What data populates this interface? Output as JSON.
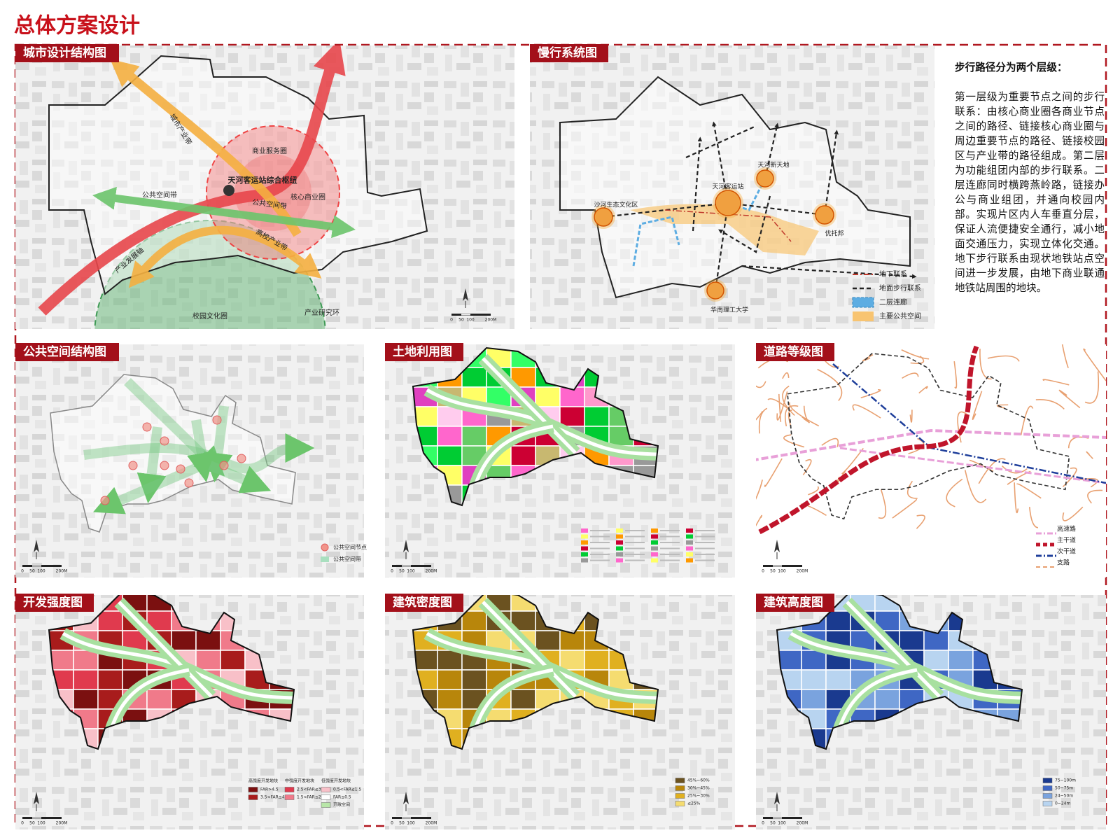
{
  "header": {
    "title": "总体方案设计"
  },
  "panels": [
    {
      "title": "城市设计结构图",
      "labels": [
        "天河客运站综合枢纽",
        "商业服务圈",
        "核心商业圈",
        "公共空间带",
        "公共空间带",
        "城市产业带",
        "高校产业带",
        "产业发展轴",
        "校园文化圈",
        "产业研究环"
      ],
      "scale": [
        "0",
        "50",
        "100",
        "200M"
      ]
    },
    {
      "title": "慢行系统图",
      "labels": [
        "沙河生态文化区",
        "天河客运站",
        "天河新天地",
        "优托邦",
        "华南理工大学"
      ],
      "legend": [
        {
          "label": "地下联系",
          "color": "#c0392b"
        },
        {
          "label": "地面步行联系",
          "color": "#222222"
        },
        {
          "label": "二层连廊",
          "color": "#5dade2"
        },
        {
          "label": "主要公共空间",
          "color": "#f8c471"
        }
      ]
    },
    {
      "title": "公共空间结构图",
      "legend": [
        {
          "label": "公共空间节点",
          "color": "#f1948a"
        },
        {
          "label": "公共空间带",
          "color": "#a9dfbf"
        }
      ],
      "scale": [
        "0",
        "50",
        "100",
        "200M"
      ]
    },
    {
      "title": "土地利用图",
      "scale": [
        "0",
        "50",
        "100",
        "200M"
      ]
    },
    {
      "title": "道路等级图",
      "legend": [
        {
          "label": "高速路",
          "color": "#e8a0d8"
        },
        {
          "label": "主干道",
          "color": "#c0152b"
        },
        {
          "label": "次干道",
          "color": "#1f3f9b"
        },
        {
          "label": "支路",
          "color": "#e8a070"
        }
      ],
      "scale": [
        "0",
        "50",
        "100",
        "200M"
      ]
    },
    {
      "title": "开发强度图",
      "legend_headings": [
        "高强度开发地块",
        "中强度开发地块",
        "低强度开发地块"
      ],
      "legend": [
        {
          "label": "FAR>4.5",
          "color": "#7b1010"
        },
        {
          "label": "3.5<FAR≤4.5",
          "color": "#a81c1c"
        },
        {
          "label": "2.5<FAR≤3.5",
          "color": "#e03a4e"
        },
        {
          "label": "1.5<FAR≤2.5",
          "color": "#f07a8a"
        },
        {
          "label": "0.5<FAR≤1.5",
          "color": "#f8c0c8"
        },
        {
          "label": "FAR≤0.5",
          "color": "#ffffff"
        },
        {
          "label": "开敞空间",
          "color": "#b8e6a8"
        }
      ],
      "scale": [
        "0",
        "50",
        "100",
        "200M"
      ]
    },
    {
      "title": "建筑密度图",
      "legend": [
        {
          "label": "45%~60%",
          "color": "#6b5220"
        },
        {
          "label": "30%~45%",
          "color": "#b8860b"
        },
        {
          "label": "25%~30%",
          "color": "#e0b020"
        },
        {
          "label": "≤25%",
          "color": "#f5dc70"
        }
      ],
      "scale": [
        "0",
        "50",
        "100",
        "200M"
      ]
    },
    {
      "title": "建筑高度图",
      "legend": [
        {
          "label": "75~100m",
          "color": "#1a3a8f"
        },
        {
          "label": "50~75m",
          "color": "#3f67c4"
        },
        {
          "label": "24~50m",
          "color": "#7aa3de"
        },
        {
          "label": "0~24m",
          "color": "#b8d4f0"
        }
      ],
      "scale": [
        "0",
        "50",
        "100",
        "200M"
      ]
    }
  ],
  "walk_text": {
    "heading": "步行路径分为两个层级：",
    "paragraph": "第一层级为重要节点之间的步行联系：由核心商业圈各商业节点之间的路径、链接核心商业圈与周边重要节点的路径、链接校园区与产业带的路径组成。第二层为功能组团内部的步行联系。二层连廊同时横跨燕岭路，链接办公与商业组团，并通向校园内部。实现片区内人车垂直分层，保证人流便捷安全通行，减小地面交通压力，实现立体化交通。地下步行联系由现状地铁站点空间进一步发展，由地下商业联通地铁站周围的地块。"
  }
}
